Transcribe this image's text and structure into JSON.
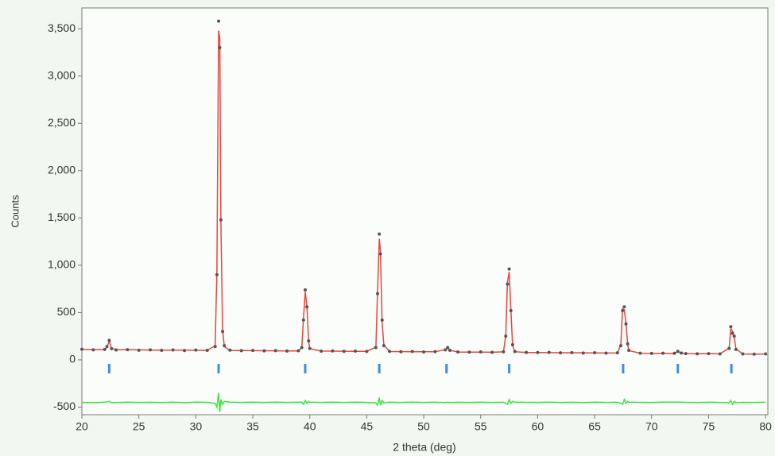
{
  "chart_data": {
    "type": "line",
    "y_label": "Counts",
    "x_label": "2 theta (deg)",
    "xlim": [
      20,
      80.2
    ],
    "ylim": [
      -580,
      3720
    ],
    "xticks": [
      20,
      25,
      30,
      35,
      40,
      45,
      50,
      55,
      60,
      65,
      70,
      75,
      80
    ],
    "yticks": [
      -500,
      0,
      500,
      {
        "value": 1000,
        "label": "1,000"
      },
      {
        "value": 1500,
        "label": "1,500"
      },
      {
        "value": 2000,
        "label": "2,000"
      },
      {
        "value": 2500,
        "label": "2,500"
      },
      {
        "value": 3000,
        "label": "3,000"
      },
      {
        "value": 3500,
        "label": "3,500"
      }
    ],
    "x": [
      20,
      21,
      22,
      22.2,
      22.4,
      22.6,
      23,
      24,
      25,
      26,
      27,
      28,
      29,
      30,
      31,
      31.7,
      31.85,
      32,
      32.1,
      32.2,
      32.35,
      32.5,
      33,
      34,
      35,
      36,
      37,
      38,
      39,
      39.3,
      39.45,
      39.6,
      39.75,
      39.9,
      40,
      41,
      42,
      43,
      44,
      45,
      45.8,
      45.95,
      46.1,
      46.2,
      46.35,
      46.5,
      47,
      48,
      49,
      50,
      51,
      51.9,
      52.1,
      52.3,
      53,
      54,
      55,
      56,
      57,
      57.2,
      57.35,
      57.5,
      57.65,
      57.8,
      58,
      59,
      60,
      61,
      62,
      63,
      64,
      65,
      66,
      67,
      67.3,
      67.45,
      67.6,
      67.75,
      67.9,
      68,
      69,
      70,
      71,
      72,
      72.3,
      72.6,
      73,
      74,
      75,
      76,
      76.8,
      76.95,
      77.1,
      77.25,
      77.4,
      78,
      79,
      80
    ],
    "series": [
      {
        "mode": "markers",
        "color": "#555555",
        "values": [
          112,
          106,
          110,
          140,
          205,
          118,
          104,
          108,
          101,
          106,
          100,
          104,
          98,
          103,
          100,
          140,
          900,
          3580,
          3300,
          1480,
          300,
          150,
          102,
          97,
          99,
          95,
          97,
          93,
          96,
          130,
          420,
          740,
          560,
          200,
          120,
          92,
          94,
          90,
          92,
          89,
          130,
          700,
          1330,
          1120,
          420,
          150,
          90,
          86,
          89,
          84,
          87,
          105,
          130,
          100,
          84,
          81,
          83,
          79,
          85,
          250,
          800,
          960,
          520,
          160,
          88,
          78,
          77,
          79,
          74,
          76,
          72,
          75,
          71,
          74,
          150,
          520,
          560,
          380,
          170,
          100,
          70,
          68,
          70,
          69,
          90,
          72,
          66,
          64,
          66,
          62,
          120,
          350,
          280,
          250,
          110,
          62,
          60,
          63
        ]
      },
      {
        "mode": "line",
        "color": "#e8453c",
        "values": [
          110,
          109,
          108,
          135,
          195,
          122,
          107,
          106,
          105,
          104,
          103,
          102,
          102,
          101,
          100,
          150,
          950,
          3480,
          3400,
          1450,
          320,
          140,
          99,
          98,
          97,
          96,
          95,
          94,
          94,
          128,
          440,
          720,
          570,
          190,
          118,
          93,
          92,
          91,
          90,
          90,
          135,
          730,
          1280,
          1150,
          400,
          155,
          88,
          87,
          86,
          85,
          85,
          108,
          128,
          102,
          83,
          82,
          81,
          80,
          84,
          260,
          820,
          930,
          530,
          150,
          86,
          78,
          77,
          76,
          75,
          75,
          74,
          73,
          72,
          73,
          160,
          540,
          530,
          390,
          160,
          98,
          70,
          69,
          68,
          67,
          88,
          71,
          66,
          65,
          64,
          63,
          125,
          330,
          300,
          240,
          115,
          62,
          61,
          61
        ]
      },
      {
        "mode": "line",
        "color": "#3ee23e",
        "values": [
          -450,
          -453,
          -448,
          -445,
          -440,
          -454,
          -452,
          -448,
          -451,
          -449,
          -452,
          -448,
          -453,
          -448,
          -450,
          -460,
          -500,
          -350,
          -550,
          -420,
          -470,
          -440,
          -447,
          -451,
          -448,
          -451,
          -448,
          -451,
          -448,
          -448,
          -470,
          -430,
          -460,
          -440,
          -448,
          -451,
          -448,
          -451,
          -448,
          -451,
          -455,
          -480,
          -400,
          -480,
          -430,
          -455,
          -448,
          -451,
          -447,
          -451,
          -448,
          -453,
          -448,
          -452,
          -449,
          -451,
          -448,
          -451,
          -449,
          -460,
          -470,
          -420,
          -460,
          -440,
          -448,
          -450,
          -450,
          -447,
          -451,
          -449,
          -452,
          -448,
          -451,
          -449,
          -460,
          -470,
          -420,
          -460,
          -440,
          -448,
          -450,
          -451,
          -448,
          -448,
          -448,
          -449,
          -450,
          -451,
          -448,
          -451,
          -455,
          -430,
          -470,
          -440,
          -455,
          -450,
          -451,
          -448
        ]
      }
    ],
    "reflections": {
      "color": "#3b8ee8",
      "positions": [
        22.4,
        32.0,
        39.6,
        46.1,
        52.0,
        57.5,
        67.5,
        72.3,
        77.0
      ]
    }
  }
}
